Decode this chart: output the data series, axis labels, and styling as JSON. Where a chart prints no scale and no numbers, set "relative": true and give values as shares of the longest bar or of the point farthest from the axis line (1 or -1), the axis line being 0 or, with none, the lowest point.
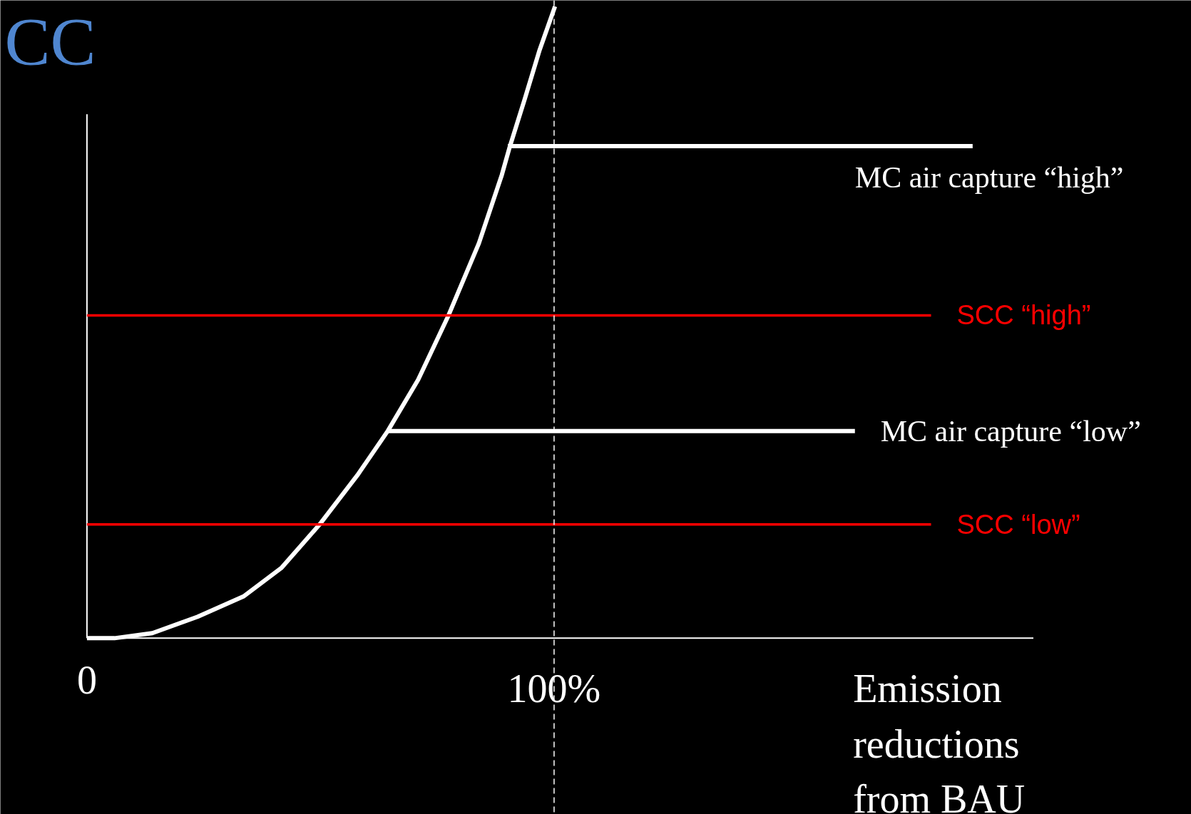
{
  "chart_data": {
    "type": "line",
    "title": "CC",
    "xlabel": "Emission reductions from BAU",
    "relative": true,
    "xlim": [
      0,
      202.6
    ],
    "xticks": [
      {
        "value": 0,
        "label": "0"
      },
      {
        "value": 100,
        "label": "100%"
      }
    ],
    "tick_labels": "x",
    "grid": false,
    "marker": "none",
    "line_style": "solid",
    "ref_lines": [
      {
        "axis": "x",
        "value": 100,
        "label": null,
        "color": "#ffffff",
        "line_style": "dashed"
      }
    ],
    "series": [
      {
        "color": "#ffffff",
        "x": [
          0,
          5.9,
          14.0,
          23.7,
          33.5,
          41.6,
          49.8,
          57.9,
          64.4,
          70.9,
          77.4,
          83.9,
          88.8,
          90.4,
          93.7,
          96.9,
          100.2
        ],
        "values": [
          0,
          0,
          0.008,
          0.034,
          0.066,
          0.111,
          0.18,
          0.258,
          0.328,
          0.409,
          0.511,
          0.625,
          0.733,
          0.775,
          0.853,
          0.931,
          1.0
        ]
      },
      {
        "name": "MC air capture “high”",
        "color": "#ffffff",
        "x": [
          90.1,
          189.6
        ],
        "values": [
          0.779,
          0.779
        ]
      },
      {
        "name": "SCC “high”",
        "color": "#ff0000",
        "x": [
          0,
          180.7
        ],
        "values": [
          0.511,
          0.511
        ]
      },
      {
        "name": "MC air capture “low”",
        "color": "#ffffff",
        "x": [
          64.4,
          164.4
        ],
        "values": [
          0.328,
          0.328
        ]
      },
      {
        "name": "SCC “low”",
        "color": "#ff0000",
        "x": [
          0,
          180.7
        ],
        "values": [
          0.18,
          0.18
        ]
      }
    ]
  }
}
